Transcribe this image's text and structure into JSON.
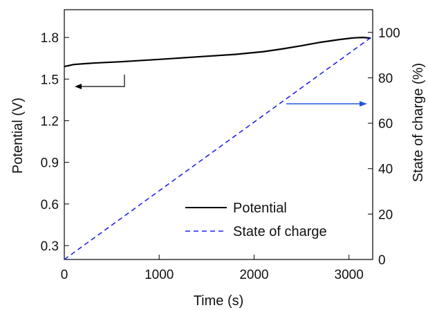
{
  "chart_data": {
    "type": "line",
    "xlabel": "Time (s)",
    "ylabel_left": "Potential (V)",
    "ylabel_right": "State of charge (%)",
    "xlim": [
      0,
      3250
    ],
    "ylim_left": [
      0.2,
      2.0
    ],
    "ylim_right": [
      0,
      110
    ],
    "x_ticks": [
      0,
      1000,
      2000,
      3000
    ],
    "y_left_ticks": [
      0.3,
      0.6,
      0.9,
      1.2,
      1.5,
      1.8
    ],
    "y_right_ticks": [
      0,
      20,
      40,
      60,
      80,
      100
    ],
    "grid": false,
    "legend_placement": "bottom-right",
    "series": [
      {
        "name": "Potential",
        "axis": "left",
        "style": "solid",
        "color": "#000000",
        "x": [
          0,
          100,
          300,
          600,
          1000,
          1400,
          1800,
          2100,
          2300,
          2500,
          2700,
          2900,
          3050,
          3150,
          3230
        ],
        "y": [
          1.59,
          1.605,
          1.615,
          1.625,
          1.642,
          1.66,
          1.678,
          1.698,
          1.718,
          1.74,
          1.765,
          1.785,
          1.797,
          1.8,
          1.795
        ]
      },
      {
        "name": "State of charge",
        "axis": "right",
        "style": "dashed",
        "color": "#2222ee",
        "x": [
          0,
          3240
        ],
        "y": [
          0,
          98
        ]
      }
    ],
    "annotations": [
      {
        "type": "arrow",
        "points_to": "left-axis",
        "color": "#000000"
      },
      {
        "type": "arrow",
        "points_to": "right-axis",
        "color": "#2255dd"
      }
    ]
  }
}
